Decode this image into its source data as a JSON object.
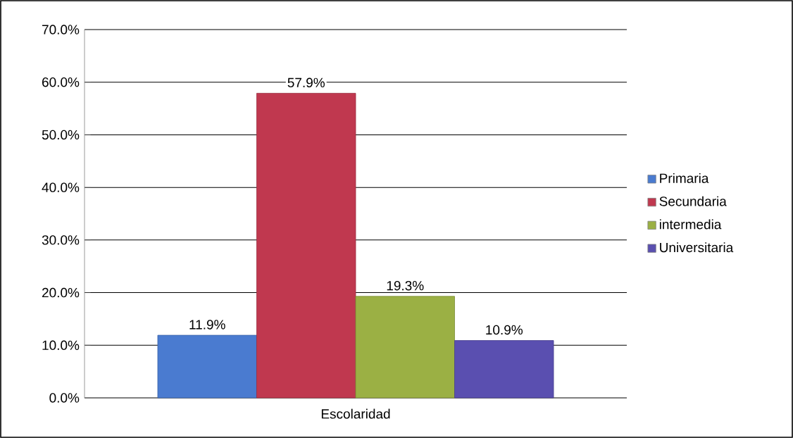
{
  "chart_data": {
    "type": "bar",
    "categories": [
      "Escolaridad"
    ],
    "series": [
      {
        "name": "Primaria",
        "color": "#4a7bd0",
        "values": [
          11.9
        ],
        "value_labels": [
          "11.9%"
        ]
      },
      {
        "name": "Secundaria",
        "color": "#c0384f",
        "values": [
          57.9
        ],
        "value_labels": [
          "57.9%"
        ]
      },
      {
        "name": "intermedia",
        "color": "#9bb044",
        "values": [
          19.3
        ],
        "value_labels": [
          "19.3%"
        ]
      },
      {
        "name": "Universitaria",
        "color": "#5a4fb0",
        "values": [
          10.9
        ],
        "value_labels": [
          "10.9%"
        ]
      }
    ],
    "ylim": [
      0,
      70
    ],
    "yticks": [
      {
        "value": 0,
        "label": "0.0%"
      },
      {
        "value": 10,
        "label": "10.0%"
      },
      {
        "value": 20,
        "label": "20.0%"
      },
      {
        "value": 30,
        "label": "30.0%"
      },
      {
        "value": 40,
        "label": "40.0%"
      },
      {
        "value": 50,
        "label": "50.0%"
      },
      {
        "value": 60,
        "label": "60.0%"
      },
      {
        "value": 70,
        "label": "70.0%"
      }
    ],
    "grid": "y",
    "legend": "right"
  }
}
